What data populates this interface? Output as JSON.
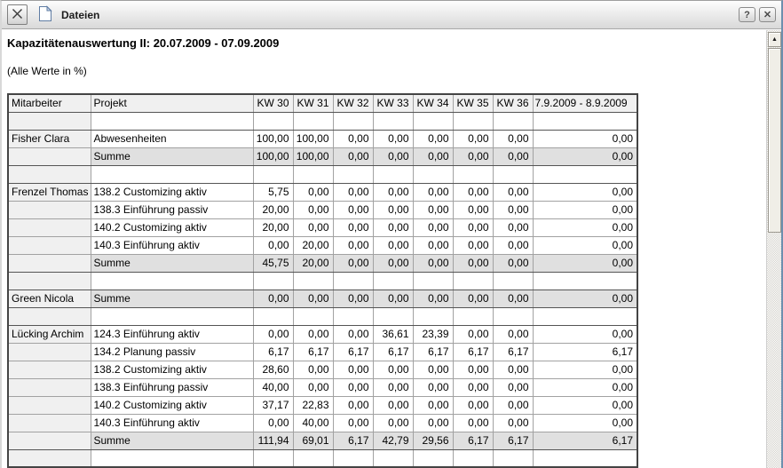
{
  "toolbar": {
    "label": "Dateien",
    "help_label": "?",
    "close_label": "✕"
  },
  "page": {
    "title": "Kapazitätenauswertung II: 20.07.2009 - 07.09.2009",
    "subtitle": "(Alle Werte in %)"
  },
  "table": {
    "columns": [
      "Mitarbeiter",
      "Projekt",
      "KW 30",
      "KW 31",
      "KW 32",
      "KW 33",
      "KW 34",
      "KW 35",
      "KW 36",
      "7.9.2009 - 8.9.2009"
    ],
    "rows": [
      {
        "type": "spacer"
      },
      {
        "type": "data",
        "mitarbeiter": "Fisher Clara",
        "projekt": "Abwesenheiten",
        "values": [
          "100,00",
          "100,00",
          "0,00",
          "0,00",
          "0,00",
          "0,00",
          "0,00",
          "0,00"
        ]
      },
      {
        "type": "summe",
        "projekt": "Summe",
        "values": [
          "100,00",
          "100,00",
          "0,00",
          "0,00",
          "0,00",
          "0,00",
          "0,00",
          "0,00"
        ]
      },
      {
        "type": "spacer"
      },
      {
        "type": "data",
        "mitarbeiter": "Frenzel Thomas",
        "projekt": "138.2 Customizing aktiv",
        "values": [
          "5,75",
          "0,00",
          "0,00",
          "0,00",
          "0,00",
          "0,00",
          "0,00",
          "0,00"
        ]
      },
      {
        "type": "data",
        "projekt": "138.3 Einführung passiv",
        "values": [
          "20,00",
          "0,00",
          "0,00",
          "0,00",
          "0,00",
          "0,00",
          "0,00",
          "0,00"
        ]
      },
      {
        "type": "data",
        "projekt": "140.2 Customizing aktiv",
        "values": [
          "20,00",
          "0,00",
          "0,00",
          "0,00",
          "0,00",
          "0,00",
          "0,00",
          "0,00"
        ]
      },
      {
        "type": "data",
        "projekt": "140.3 Einführung aktiv",
        "values": [
          "0,00",
          "20,00",
          "0,00",
          "0,00",
          "0,00",
          "0,00",
          "0,00",
          "0,00"
        ]
      },
      {
        "type": "summe",
        "projekt": "Summe",
        "values": [
          "45,75",
          "20,00",
          "0,00",
          "0,00",
          "0,00",
          "0,00",
          "0,00",
          "0,00"
        ]
      },
      {
        "type": "spacer"
      },
      {
        "type": "summe",
        "mitarbeiter": "Green Nicola",
        "projekt": "Summe",
        "values": [
          "0,00",
          "0,00",
          "0,00",
          "0,00",
          "0,00",
          "0,00",
          "0,00",
          "0,00"
        ]
      },
      {
        "type": "spacer"
      },
      {
        "type": "data",
        "mitarbeiter": "Lücking Archim",
        "projekt": "124.3 Einführung aktiv",
        "values": [
          "0,00",
          "0,00",
          "0,00",
          "36,61",
          "23,39",
          "0,00",
          "0,00",
          "0,00"
        ]
      },
      {
        "type": "data",
        "projekt": "134.2 Planung passiv",
        "values": [
          "6,17",
          "6,17",
          "6,17",
          "6,17",
          "6,17",
          "6,17",
          "6,17",
          "6,17"
        ]
      },
      {
        "type": "data",
        "projekt": "138.2 Customizing aktiv",
        "values": [
          "28,60",
          "0,00",
          "0,00",
          "0,00",
          "0,00",
          "0,00",
          "0,00",
          "0,00"
        ]
      },
      {
        "type": "data",
        "projekt": "138.3 Einführung passiv",
        "values": [
          "40,00",
          "0,00",
          "0,00",
          "0,00",
          "0,00",
          "0,00",
          "0,00",
          "0,00"
        ]
      },
      {
        "type": "data",
        "projekt": "140.2 Customizing aktiv",
        "values": [
          "37,17",
          "22,83",
          "0,00",
          "0,00",
          "0,00",
          "0,00",
          "0,00",
          "0,00"
        ]
      },
      {
        "type": "data",
        "projekt": "140.3 Einführung aktiv",
        "values": [
          "0,00",
          "40,00",
          "0,00",
          "0,00",
          "0,00",
          "0,00",
          "0,00",
          "0,00"
        ]
      },
      {
        "type": "summe",
        "projekt": "Summe",
        "values": [
          "111,94",
          "69,01",
          "6,17",
          "42,79",
          "29,56",
          "6,17",
          "6,17",
          "6,17"
        ]
      },
      {
        "type": "spacer"
      }
    ]
  }
}
